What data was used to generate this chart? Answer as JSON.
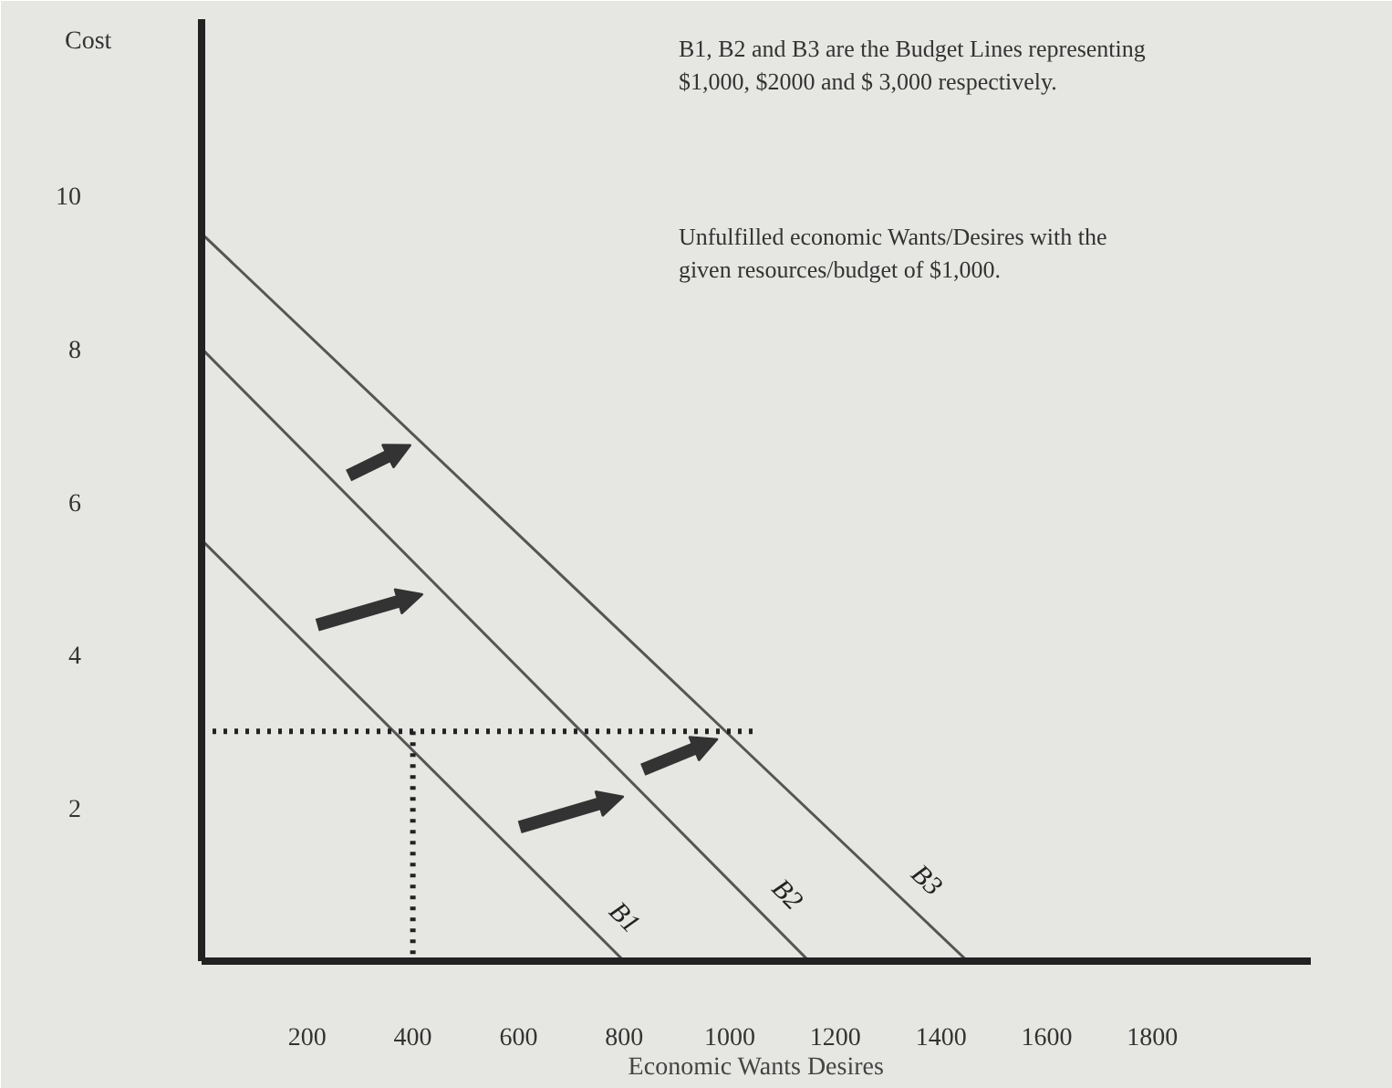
{
  "chart_data": {
    "type": "line",
    "xlabel": "Economic Wants Desires",
    "ylabel": "Cost",
    "xlim": [
      0,
      2100
    ],
    "ylim": [
      0,
      12.3
    ],
    "xticks": [
      200,
      400,
      600,
      800,
      1000,
      1200,
      1400,
      1600,
      1800
    ],
    "yticks": [
      2,
      4,
      6,
      8,
      10
    ],
    "marker": "none",
    "series": [
      {
        "name": "B1",
        "color": "#555555",
        "x": [
          0,
          800
        ],
        "values": [
          5.5,
          0
        ]
      },
      {
        "name": "B2",
        "color": "#555555",
        "x": [
          0,
          1150
        ],
        "values": [
          8,
          0
        ]
      },
      {
        "name": "B3",
        "color": "#555555",
        "x": [
          0,
          1450
        ],
        "values": [
          9.5,
          0
        ]
      },
      {
        "color": "#222222",
        "line_style": "dotted",
        "x": [
          0,
          1050
        ],
        "values": [
          3,
          3
        ]
      },
      {
        "color": "#222222",
        "line_style": "dotted",
        "x": [
          400,
          400
        ],
        "values": [
          3,
          0
        ]
      }
    ],
    "annotations": [
      "B1, B2 and B3 are the Budget Lines representing $1,000, $2000 and $ 3,000 respectively.",
      "Unfulfilled economic Wants/Desires with the given resources/budget of $1,000."
    ]
  }
}
